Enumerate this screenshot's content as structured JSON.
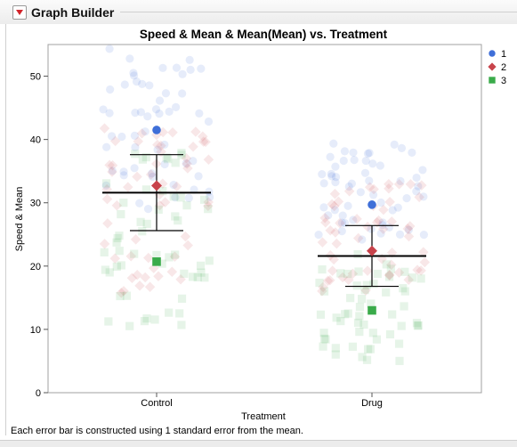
{
  "header": {
    "title": "Graph Builder"
  },
  "footnote": "Each error bar is constructed using 1 standard error from the mean.",
  "chart_data": {
    "type": "scatter",
    "title": "Speed & Mean & Mean(Mean) vs. Treatment",
    "xlabel": "Treatment",
    "ylabel": "Speed & Mean",
    "ylim": [
      0,
      55
    ],
    "yticks": [
      0,
      10,
      20,
      30,
      40,
      50
    ],
    "categories": [
      "Control",
      "Drug"
    ],
    "legend_position": "top-right",
    "grid": false,
    "series": [
      {
        "name": "1",
        "marker": "circle",
        "color": "#3f6fd8",
        "means": [
          41.5,
          29.7
        ],
        "cloud_ranges": [
          [
            29,
            54.5
          ],
          [
            24,
            39.5
          ]
        ]
      },
      {
        "name": "2",
        "marker": "diamond",
        "color": "#c8434b",
        "means": [
          32.7,
          22.4
        ],
        "cloud_ranges": [
          [
            15.5,
            43
          ],
          [
            16,
            33
          ]
        ]
      },
      {
        "name": "3",
        "marker": "square",
        "color": "#3aab4a",
        "means": [
          20.7,
          13.0
        ],
        "cloud_ranges": [
          [
            10.5,
            40
          ],
          [
            5,
            23
          ]
        ]
      }
    ],
    "overall_mean": {
      "values": [
        31.6,
        21.6
      ],
      "error_bar_low": [
        25.6,
        16.8
      ],
      "error_bar_high": [
        37.6,
        26.4
      ]
    }
  }
}
